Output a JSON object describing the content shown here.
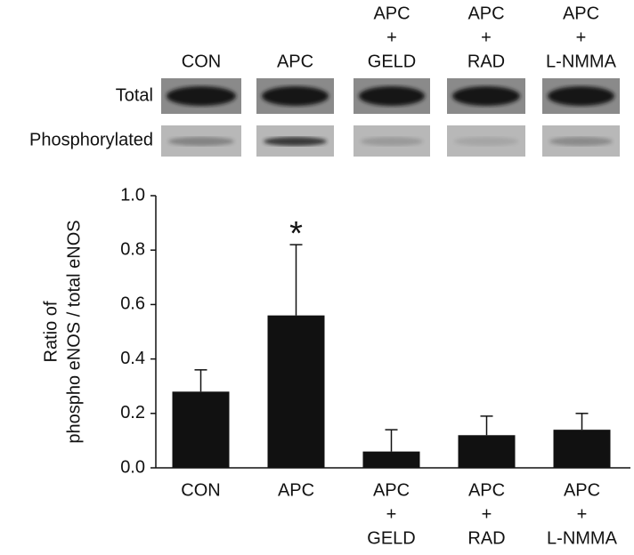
{
  "chart_data": {
    "type": "bar",
    "categories": [
      [
        "CON"
      ],
      [
        "APC"
      ],
      [
        "APC",
        "+",
        "GELD"
      ],
      [
        "APC",
        "+",
        "RAD"
      ],
      [
        "APC",
        "+",
        "L-NMMA"
      ]
    ],
    "values": [
      0.28,
      0.56,
      0.06,
      0.12,
      0.14
    ],
    "errors": [
      0.08,
      0.26,
      0.08,
      0.07,
      0.06
    ],
    "color": "#111111",
    "ylabel": [
      "Ratio of",
      "phospho eNOS / total eNOS"
    ],
    "ylim": [
      0,
      1
    ],
    "yticks": [
      {
        "value": 0,
        "label": "0.0"
      },
      0.2,
      0.4,
      0.6,
      0.8,
      {
        "value": 1,
        "label": "1.0"
      }
    ],
    "annotations": [
      {
        "text": "*",
        "category": 1
      }
    ],
    "blot_rows": [
      "Total",
      "Phosphorylated"
    ]
  }
}
